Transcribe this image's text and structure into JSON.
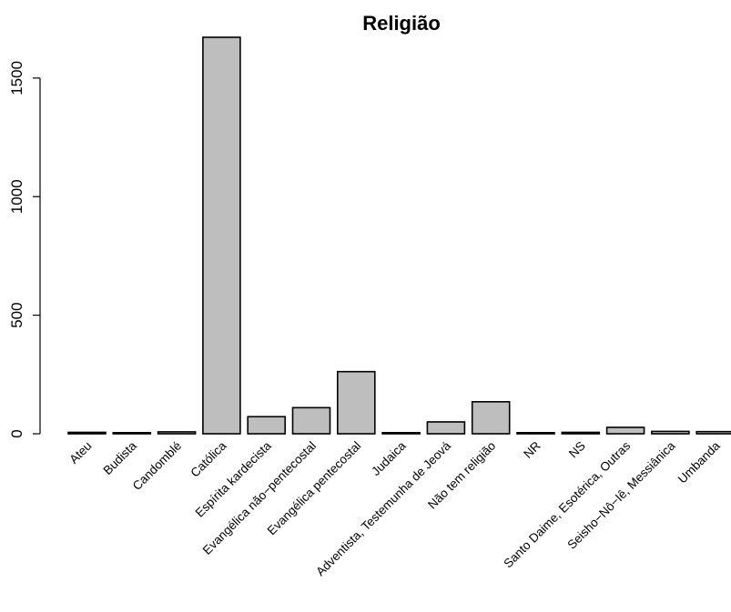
{
  "chart_data": {
    "type": "bar",
    "title": "Religião",
    "xlabel": "",
    "ylabel": "",
    "categories": [
      "Ateu",
      "Budista",
      "Candomblé",
      "Católica",
      "Espírita kardecista",
      "Evangélica não−pentecostal",
      "Evangélica pentecostal",
      "Judaica",
      "Adventista, Testemunha de Jeová",
      "Não tem religião",
      "NR",
      "NS",
      "Santo Daime, Esotérica, Outras",
      "Seisho−Nô−Iê, Messiânica",
      "Umbanda"
    ],
    "values": [
      6,
      3,
      8,
      1672,
      72,
      110,
      262,
      4,
      50,
      135,
      4,
      6,
      27,
      10,
      9
    ],
    "y_ticks": [
      0,
      500,
      1000,
      1500
    ],
    "y_tick_labels": [
      "0",
      "500",
      "1000",
      "1500"
    ],
    "ylim": [
      0,
      1672
    ],
    "bar_color": "#bebebe",
    "border_color": "#000000",
    "grid": false,
    "legend": "none"
  }
}
